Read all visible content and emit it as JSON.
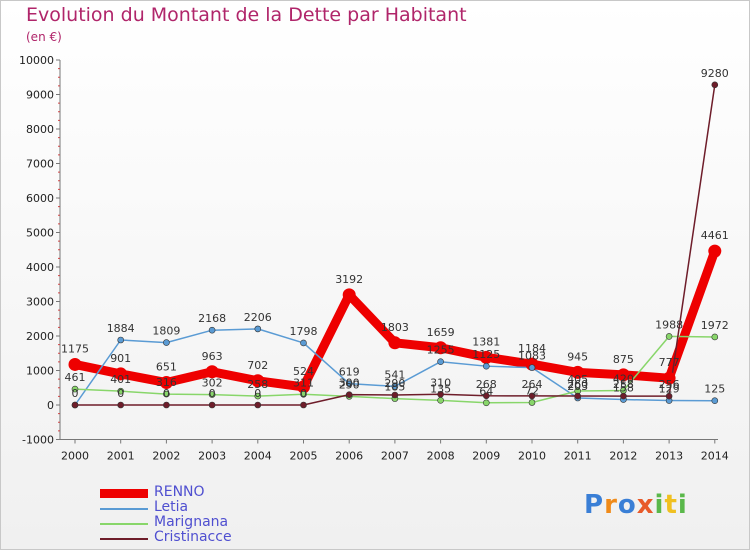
{
  "chart_data": {
    "type": "line",
    "title": "Evolution du Montant de la Dette par Habitant",
    "subtitle": "(en €)",
    "x": [
      "2000",
      "2001",
      "2002",
      "2003",
      "2004",
      "2005",
      "2006",
      "2007",
      "2008",
      "2009",
      "2010",
      "2011",
      "2012",
      "2013",
      "2014"
    ],
    "ylim": [
      -1000,
      10000
    ],
    "yticks": [
      -1000,
      0,
      1000,
      2000,
      3000,
      4000,
      5000,
      6000,
      7000,
      8000,
      9000,
      10000
    ],
    "grid": false,
    "legend_position": "bottom-left",
    "series": [
      {
        "name": "RENNO",
        "color": "#ee0000",
        "values": [
          1175,
          901,
          651,
          963,
          702,
          524,
          3192,
          1803,
          1659,
          1381,
          1184,
          945,
          875,
          777,
          4461
        ],
        "labels_shown": true
      },
      {
        "name": "Letia",
        "color": "#5a9bd4",
        "values": [
          0,
          1884,
          1809,
          2168,
          2206,
          1798,
          619,
          541,
          1255,
          1125,
          1083,
          203,
          158,
          129,
          125
        ],
        "labels_shown": true
      },
      {
        "name": "Marignana",
        "color": "#88d66a",
        "values": [
          461,
          401,
          316,
          302,
          258,
          311,
          250,
          185,
          135,
          64,
          72,
          405,
          420,
          1988,
          1972
        ],
        "labels_shown": true
      },
      {
        "name": "Cristinacce",
        "color": "#6e1d2a",
        "values": [
          0,
          0,
          0,
          0,
          0,
          0,
          300,
          290,
          310,
          268,
          264,
          260,
          258,
          256,
          9280
        ],
        "labels_shown": true
      }
    ],
    "data_labels": [
      {
        "series": 0,
        "i": 0,
        "text": "1175"
      },
      {
        "series": 0,
        "i": 1,
        "text": "901"
      },
      {
        "series": 0,
        "i": 2,
        "text": "651"
      },
      {
        "series": 0,
        "i": 3,
        "text": "963"
      },
      {
        "series": 0,
        "i": 4,
        "text": "702"
      },
      {
        "series": 0,
        "i": 5,
        "text": "524"
      },
      {
        "series": 0,
        "i": 6,
        "text": "3192"
      },
      {
        "series": 0,
        "i": 7,
        "text": "1803"
      },
      {
        "series": 0,
        "i": 8,
        "text": "1659"
      },
      {
        "series": 0,
        "i": 9,
        "text": "1381"
      },
      {
        "series": 0,
        "i": 10,
        "text": "1184"
      },
      {
        "series": 0,
        "i": 11,
        "text": "945"
      },
      {
        "series": 0,
        "i": 12,
        "text": "875"
      },
      {
        "series": 0,
        "i": 13,
        "text": "777"
      },
      {
        "series": 0,
        "i": 14,
        "text": "4461"
      },
      {
        "series": 1,
        "i": 1,
        "text": "1884"
      },
      {
        "series": 1,
        "i": 2,
        "text": "1809"
      },
      {
        "series": 1,
        "i": 3,
        "text": "2168"
      },
      {
        "series": 1,
        "i": 4,
        "text": "2206"
      },
      {
        "series": 1,
        "i": 5,
        "text": "1798"
      },
      {
        "series": 1,
        "i": 6,
        "text": "619"
      },
      {
        "series": 1,
        "i": 7,
        "text": "541"
      },
      {
        "series": 1,
        "i": 8,
        "text": "1255"
      },
      {
        "series": 1,
        "i": 9,
        "text": "1125"
      },
      {
        "series": 1,
        "i": 10,
        "text": "1083"
      },
      {
        "series": 1,
        "i": 11,
        "text": "203"
      },
      {
        "series": 1,
        "i": 12,
        "text": "158"
      },
      {
        "series": 1,
        "i": 13,
        "text": "129"
      },
      {
        "series": 1,
        "i": 14,
        "text": "125"
      },
      {
        "series": 2,
        "i": 0,
        "text": "461"
      },
      {
        "series": 2,
        "i": 1,
        "text": "401"
      },
      {
        "series": 2,
        "i": 2,
        "text": "316"
      },
      {
        "series": 2,
        "i": 3,
        "text": "302"
      },
      {
        "series": 2,
        "i": 4,
        "text": "258"
      },
      {
        "series": 2,
        "i": 5,
        "text": "311"
      },
      {
        "series": 2,
        "i": 6,
        "text": "250"
      },
      {
        "series": 2,
        "i": 7,
        "text": "185"
      },
      {
        "series": 2,
        "i": 8,
        "text": "135"
      },
      {
        "series": 2,
        "i": 9,
        "text": "64"
      },
      {
        "series": 2,
        "i": 10,
        "text": "72"
      },
      {
        "series": 2,
        "i": 11,
        "text": "405"
      },
      {
        "series": 2,
        "i": 12,
        "text": "420"
      },
      {
        "series": 2,
        "i": 13,
        "text": "1988"
      },
      {
        "series": 2,
        "i": 14,
        "text": "1972"
      },
      {
        "series": 3,
        "i": 0,
        "text": "0"
      },
      {
        "series": 3,
        "i": 1,
        "text": "0"
      },
      {
        "series": 3,
        "i": 2,
        "text": "0"
      },
      {
        "series": 3,
        "i": 3,
        "text": "0"
      },
      {
        "series": 3,
        "i": 4,
        "text": "0"
      },
      {
        "series": 3,
        "i": 5,
        "text": "0"
      },
      {
        "series": 3,
        "i": 6,
        "text": "300"
      },
      {
        "series": 3,
        "i": 7,
        "text": "290"
      },
      {
        "series": 3,
        "i": 8,
        "text": "310"
      },
      {
        "series": 3,
        "i": 9,
        "text": "268"
      },
      {
        "series": 3,
        "i": 10,
        "text": "264"
      },
      {
        "series": 3,
        "i": 11,
        "text": "260"
      },
      {
        "series": 3,
        "i": 12,
        "text": "258"
      },
      {
        "series": 3,
        "i": 13,
        "text": "256"
      },
      {
        "series": 3,
        "i": 14,
        "text": "9280"
      }
    ]
  },
  "legend": {
    "items": [
      {
        "label": "RENNO",
        "color": "#ee0000"
      },
      {
        "label": "Letia",
        "color": "#5a9bd4"
      },
      {
        "label": "Marignana",
        "color": "#88d66a"
      },
      {
        "label": "Cristinacce",
        "color": "#6e1d2a"
      }
    ]
  },
  "logo": {
    "text": "Proxiti",
    "colors": [
      "#3a7fd6",
      "#f08a18",
      "#3a7fd6",
      "#e85a2a",
      "#5ab84a",
      "#f0c020",
      "#5ab84a"
    ]
  },
  "colors": {
    "title": "#b0256a",
    "axis": "#555555",
    "tick_text": "#222222"
  }
}
